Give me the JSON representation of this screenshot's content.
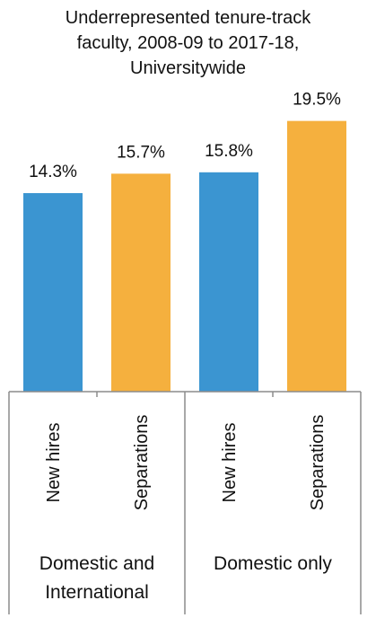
{
  "chart_data": {
    "type": "bar",
    "title_lines": [
      "Underrepresented tenure-track",
      "faculty, 2008-09 to 2017-18,",
      "Universitywide"
    ],
    "categories": [
      "New hires",
      "Separations",
      "New hires",
      "Separations"
    ],
    "groups": [
      {
        "label_lines": [
          "Domestic and",
          "International"
        ],
        "categories": [
          0,
          1
        ]
      },
      {
        "label_lines": [
          "Domestic only"
        ],
        "categories": [
          2,
          3
        ]
      }
    ],
    "values": [
      14.3,
      15.7,
      15.8,
      19.5
    ],
    "data_labels": [
      "14.3%",
      "15.7%",
      "15.8%",
      "19.5%"
    ],
    "ylim": [
      0,
      22
    ],
    "grid": false,
    "legend": "none",
    "colors": {
      "new_hires": "#3b95d1",
      "separations": "#f5b03e",
      "axis": "#8c8c8c"
    }
  }
}
